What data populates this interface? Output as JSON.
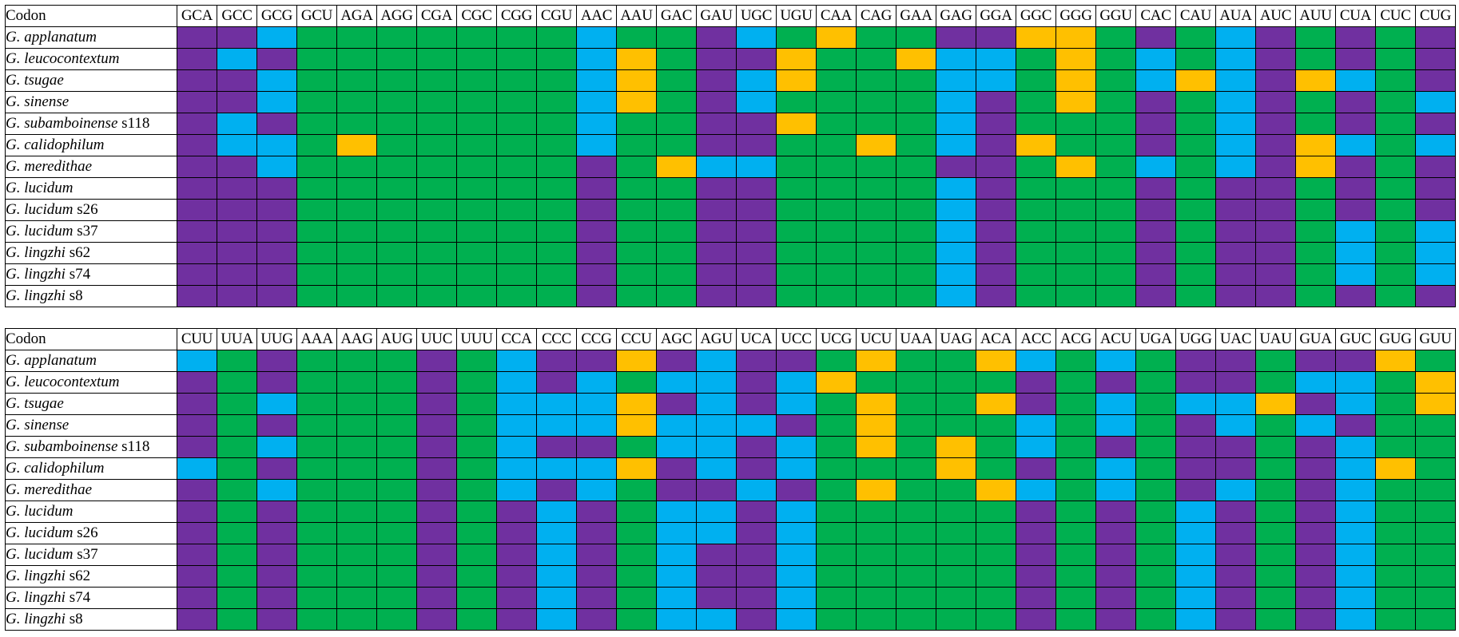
{
  "legend_colors": {
    "P": "#7030a0",
    "B": "#00b0f0",
    "G": "#00b050",
    "Y": "#ffc000"
  },
  "chart_data": [
    {
      "type": "heatmap",
      "corner_label": "Codon",
      "codons": [
        "GCA",
        "GCC",
        "GCG",
        "GCU",
        "AGA",
        "AGG",
        "CGA",
        "CGC",
        "CGG",
        "CGU",
        "AAC",
        "AAU",
        "GAC",
        "GAU",
        "UGC",
        "UGU",
        "CAA",
        "CAG",
        "GAA",
        "GAG",
        "GGA",
        "GGC",
        "GGG",
        "GGU",
        "CAC",
        "CAU",
        "AUA",
        "AUC",
        "AUU",
        "CUA",
        "CUC",
        "CUG"
      ],
      "rows": [
        {
          "genus": "G.",
          "species": "applanatum",
          "strain": "",
          "cells": "PPBGGGGGGGBGGPBGYGGPPYYGPGBPGPGP"
        },
        {
          "genus": "G.",
          "species": "leucocontextum",
          "strain": "",
          "cells": "PBPGGGGGGGBYGPPYGGYBBGYGBGBPGPGP"
        },
        {
          "genus": "G.",
          "species": "tsugae",
          "strain": "",
          "cells": "PPBGGGGGGGBYGPBYGGGBBGYGBYBPYBGP"
        },
        {
          "genus": "G.",
          "species": "sinense",
          "strain": "",
          "cells": "PPBGGGGGGGBYGPBGGGGBPGYGPGBPGPGB"
        },
        {
          "genus": "G.",
          "species": "subamboinense",
          "strain": "s118",
          "cells": "PBPGGGGGGGBGGPPYGGGBPGGGPGBPGPGP"
        },
        {
          "genus": "G.",
          "species": "calidophilum",
          "strain": "",
          "cells": "PBBGYGGGGGBGGPPGGYGBPYGGPGBPYBGB"
        },
        {
          "genus": "G.",
          "species": "meredithae",
          "strain": "",
          "cells": "PPBGGGGGGGPGYBBGGGGPPGYGBGBPYPGP"
        },
        {
          "genus": "G.",
          "species": "lucidum",
          "strain": "",
          "cells": "PPPGGGGGGGPGGPPGGGGBPGGGPGPPGPGP"
        },
        {
          "genus": "G.",
          "species": "lucidum",
          "strain": "s26",
          "cells": "PPPGGGGGGGPGGPPGGGGBPGGGPGPPGPGP"
        },
        {
          "genus": "G.",
          "species": "lucidum",
          "strain": "s37",
          "cells": "PPPGGGGGGGPGGPPGGGGBPGGGPGPPGBGB"
        },
        {
          "genus": "G.",
          "species": "lingzhi",
          "strain": "s62",
          "cells": "PPPGGGGGGGPGGPPGGGGBPGGGPGPPGBGB"
        },
        {
          "genus": "G.",
          "species": "lingzhi",
          "strain": "s74",
          "cells": "PPPGGGGGGGPGGPPGGGGBPGGGPGPPGBGB"
        },
        {
          "genus": "G.",
          "species": "lingzhi",
          "strain": "s8",
          "cells": "PPPGGGGGGGPGGPPGGGGBPGGGPGPPGPGP"
        }
      ]
    },
    {
      "type": "heatmap",
      "corner_label": "Codon",
      "codons": [
        "CUU",
        "UUA",
        "UUG",
        "AAA",
        "AAG",
        "AUG",
        "UUC",
        "UUU",
        "CCA",
        "CCC",
        "CCG",
        "CCU",
        "AGC",
        "AGU",
        "UCA",
        "UCC",
        "UCG",
        "UCU",
        "UAA",
        "UAG",
        "ACA",
        "ACC",
        "ACG",
        "ACU",
        "UGA",
        "UGG",
        "UAC",
        "UAU",
        "GUA",
        "GUC",
        "GUG",
        "GUU"
      ],
      "rows": [
        {
          "genus": "G.",
          "species": "applanatum",
          "strain": "",
          "cells": "BGPGGGPGBPPYPBPPGYGGYBGBGPPGPPYG"
        },
        {
          "genus": "G.",
          "species": "leucocontextum",
          "strain": "",
          "cells": "PGPGGGPGBPBGBBPBYGGGGPGPGPPGBBGY"
        },
        {
          "genus": "G.",
          "species": "tsugae",
          "strain": "",
          "cells": "PGBGGGPGBBBYPBPBGYGGYPGBGBBYPBGY"
        },
        {
          "genus": "G.",
          "species": "sinense",
          "strain": "",
          "cells": "PGPGGGPGBBBYBBBPGYGGGBGBGPBGBPGG"
        },
        {
          "genus": "G.",
          "species": "subamboinense",
          "strain": "s118",
          "cells": "PGBGGGPGBPPGBBPBGYGYGBGPGPPGPBGG"
        },
        {
          "genus": "G.",
          "species": "calidophilum",
          "strain": "",
          "cells": "BGPGGGPGBBBYPBPBGGGYGPGBGPPGPBYG"
        },
        {
          "genus": "G.",
          "species": "meredithae",
          "strain": "",
          "cells": "PGBGGGPGBPBGPPBPGYGGYBGBGPBGPBGG"
        },
        {
          "genus": "G.",
          "species": "lucidum",
          "strain": "",
          "cells": "PGPGGGPGPBPGBBPBGGGGGPGPGBPGPBGG"
        },
        {
          "genus": "G.",
          "species": "lucidum",
          "strain": "s26",
          "cells": "PGPGGGPGPBPGBBPBGGGGGPGPGBPGPBGG"
        },
        {
          "genus": "G.",
          "species": "lucidum",
          "strain": "s37",
          "cells": "PGPGGGPGPBPGBPPBGGGGGPGPGBPGPBGG"
        },
        {
          "genus": "G.",
          "species": "lingzhi",
          "strain": "s62",
          "cells": "PGPGGGPGPBPGBPPBGGGGGPGPGBPGPBGG"
        },
        {
          "genus": "G.",
          "species": "lingzhi",
          "strain": "s74",
          "cells": "PGPGGGPGPBPGBPPBGGGGGPGPGBPGPBGG"
        },
        {
          "genus": "G.",
          "species": "lingzhi",
          "strain": "s8",
          "cells": "PGPGGGPGPBPGBBPBGGGGGPGPGBPGPBGG"
        }
      ]
    }
  ]
}
